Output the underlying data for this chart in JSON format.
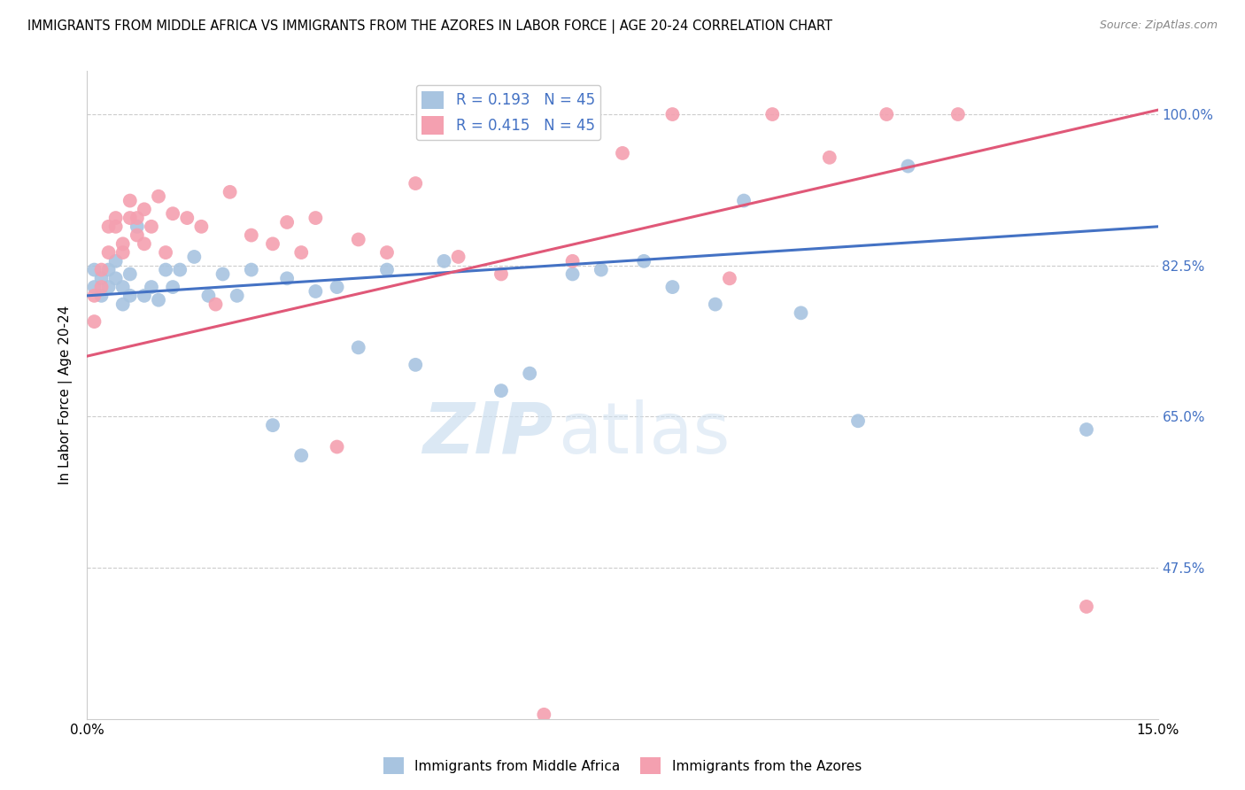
{
  "title": "IMMIGRANTS FROM MIDDLE AFRICA VS IMMIGRANTS FROM THE AZORES IN LABOR FORCE | AGE 20-24 CORRELATION CHART",
  "source": "Source: ZipAtlas.com",
  "ylabel": "In Labor Force | Age 20-24",
  "xmin": 0.0,
  "xmax": 0.15,
  "ymin": 0.3,
  "ymax": 1.05,
  "blue_R": 0.193,
  "pink_R": 0.415,
  "N": 45,
  "blue_color": "#a8c4e0",
  "pink_color": "#f4a0b0",
  "blue_line_color": "#4472c4",
  "pink_line_color": "#e05878",
  "legend_label_blue": "Immigrants from Middle Africa",
  "legend_label_pink": "Immigrants from the Azores",
  "blue_x": [
    0.001,
    0.001,
    0.002,
    0.002,
    0.003,
    0.003,
    0.004,
    0.004,
    0.005,
    0.005,
    0.006,
    0.006,
    0.007,
    0.008,
    0.009,
    0.01,
    0.011,
    0.012,
    0.013,
    0.015,
    0.017,
    0.019,
    0.021,
    0.023,
    0.026,
    0.028,
    0.03,
    0.032,
    0.035,
    0.038,
    0.042,
    0.046,
    0.05,
    0.058,
    0.062,
    0.068,
    0.072,
    0.078,
    0.082,
    0.088,
    0.092,
    0.1,
    0.108,
    0.115,
    0.14
  ],
  "blue_y": [
    0.8,
    0.82,
    0.81,
    0.79,
    0.82,
    0.8,
    0.81,
    0.83,
    0.8,
    0.78,
    0.79,
    0.815,
    0.87,
    0.79,
    0.8,
    0.785,
    0.82,
    0.8,
    0.82,
    0.835,
    0.79,
    0.815,
    0.79,
    0.82,
    0.64,
    0.81,
    0.605,
    0.795,
    0.8,
    0.73,
    0.82,
    0.71,
    0.83,
    0.68,
    0.7,
    0.815,
    0.82,
    0.83,
    0.8,
    0.78,
    0.9,
    0.77,
    0.645,
    0.94,
    0.635
  ],
  "pink_x": [
    0.001,
    0.001,
    0.002,
    0.002,
    0.003,
    0.003,
    0.004,
    0.004,
    0.005,
    0.005,
    0.006,
    0.006,
    0.007,
    0.007,
    0.008,
    0.008,
    0.009,
    0.01,
    0.011,
    0.012,
    0.014,
    0.016,
    0.018,
    0.02,
    0.023,
    0.026,
    0.028,
    0.03,
    0.032,
    0.035,
    0.038,
    0.042,
    0.046,
    0.052,
    0.058,
    0.064,
    0.068,
    0.075,
    0.082,
    0.09,
    0.096,
    0.104,
    0.112,
    0.122,
    0.14
  ],
  "pink_y": [
    0.76,
    0.79,
    0.8,
    0.82,
    0.84,
    0.87,
    0.88,
    0.87,
    0.84,
    0.85,
    0.88,
    0.9,
    0.88,
    0.86,
    0.85,
    0.89,
    0.87,
    0.905,
    0.84,
    0.885,
    0.88,
    0.87,
    0.78,
    0.91,
    0.86,
    0.85,
    0.875,
    0.84,
    0.88,
    0.615,
    0.855,
    0.84,
    0.92,
    0.835,
    0.815,
    0.305,
    0.83,
    0.955,
    1.0,
    0.81,
    1.0,
    0.95,
    1.0,
    1.0,
    0.43
  ]
}
